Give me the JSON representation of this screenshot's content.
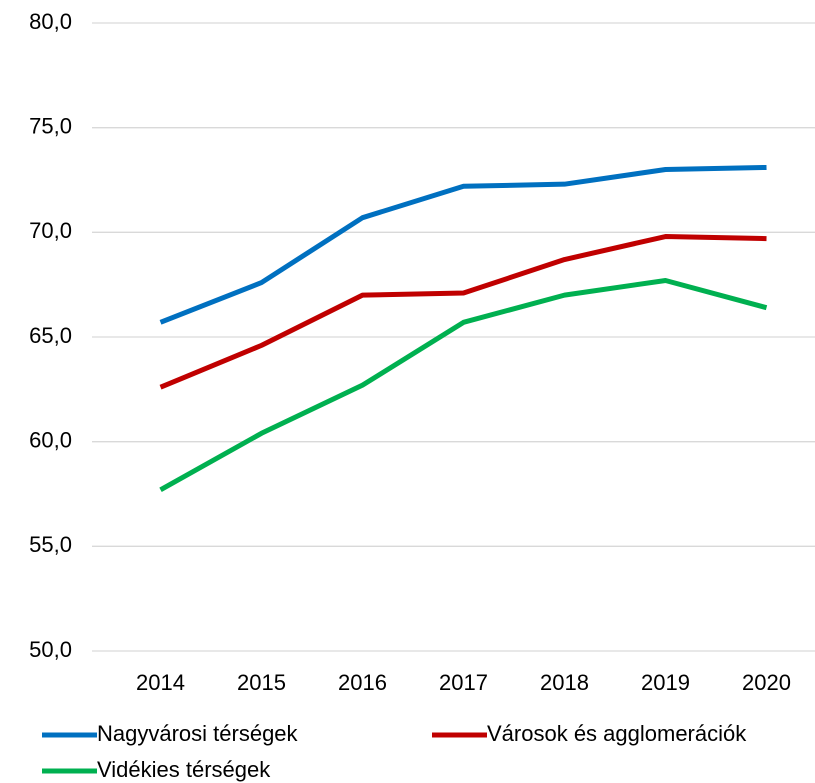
{
  "chart_data": {
    "type": "line",
    "categories": [
      "2014",
      "2015",
      "2016",
      "2017",
      "2018",
      "2019",
      "2020"
    ],
    "series": [
      {
        "name": "Nagyvárosi térségek",
        "color": "#0070c0",
        "values": [
          65.7,
          67.6,
          70.7,
          72.2,
          72.3,
          73.0,
          73.1
        ]
      },
      {
        "name": "Városok és agglomerációk",
        "color": "#c00000",
        "values": [
          62.6,
          64.6,
          67.0,
          67.1,
          68.7,
          69.8,
          69.7
        ]
      },
      {
        "name": "Vidékies térségek",
        "color": "#00b050",
        "values": [
          57.7,
          60.4,
          62.7,
          65.7,
          67.0,
          67.7,
          66.4
        ]
      }
    ],
    "ylim": [
      50,
      80
    ],
    "yticks": [
      {
        "value": 50,
        "label": "50,0"
      },
      {
        "value": 55,
        "label": "55,0"
      },
      {
        "value": 60,
        "label": "60,0"
      },
      {
        "value": 65,
        "label": "65,0"
      },
      {
        "value": 70,
        "label": "70,0"
      },
      {
        "value": 75,
        "label": "75,0"
      },
      {
        "value": 80,
        "label": "80,0"
      }
    ],
    "grid": true,
    "legend": "bottom"
  }
}
